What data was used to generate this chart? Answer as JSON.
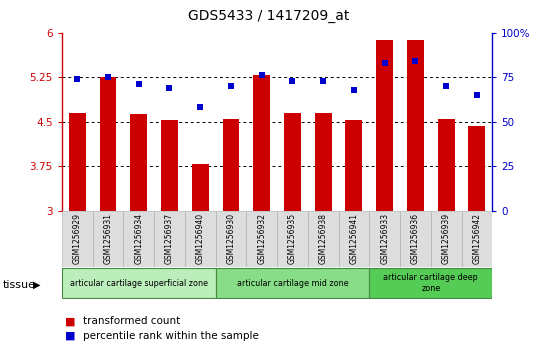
{
  "title": "GDS5433 / 1417209_at",
  "samples": [
    "GSM1256929",
    "GSM1256931",
    "GSM1256934",
    "GSM1256937",
    "GSM1256940",
    "GSM1256930",
    "GSM1256932",
    "GSM1256935",
    "GSM1256938",
    "GSM1256941",
    "GSM1256933",
    "GSM1256936",
    "GSM1256939",
    "GSM1256942"
  ],
  "bar_values": [
    4.65,
    5.25,
    4.62,
    4.52,
    3.78,
    4.55,
    5.28,
    4.65,
    4.65,
    4.52,
    5.87,
    5.88,
    4.55,
    4.42
  ],
  "percentile_values": [
    74,
    75,
    71,
    69,
    58,
    70,
    76,
    73,
    73,
    68,
    83,
    84,
    70,
    65
  ],
  "ylim_left": [
    3,
    6
  ],
  "ylim_right": [
    0,
    100
  ],
  "yticks_left": [
    3,
    3.75,
    4.5,
    5.25,
    6
  ],
  "ytick_labels_left": [
    "3",
    "3.75",
    "4.5",
    "5.25",
    "6"
  ],
  "yticks_right": [
    0,
    25,
    50,
    75,
    100
  ],
  "ytick_labels_right": [
    "0",
    "25",
    "50",
    "75",
    "100%"
  ],
  "bar_color": "#cc0000",
  "dot_color": "#0000cc",
  "zone_colors": [
    "#bbeebb",
    "#88dd88",
    "#55cc55"
  ],
  "zone_edge_color": "#448844",
  "zones": [
    {
      "label": "articular cartilage superficial zone",
      "start": 0,
      "end": 5
    },
    {
      "label": "articular cartilage mid zone",
      "start": 5,
      "end": 10
    },
    {
      "label": "articular cartilage deep\nzone",
      "start": 10,
      "end": 14
    }
  ],
  "legend_bar_label": "transformed count",
  "legend_dot_label": "percentile rank within the sample",
  "tissue_label": "tissue",
  "left_axis_color": "#cc0000",
  "right_axis_color": "#0000cc",
  "grid_yticks": [
    3.75,
    4.5,
    5.25
  ],
  "bar_bottom": 3.0
}
